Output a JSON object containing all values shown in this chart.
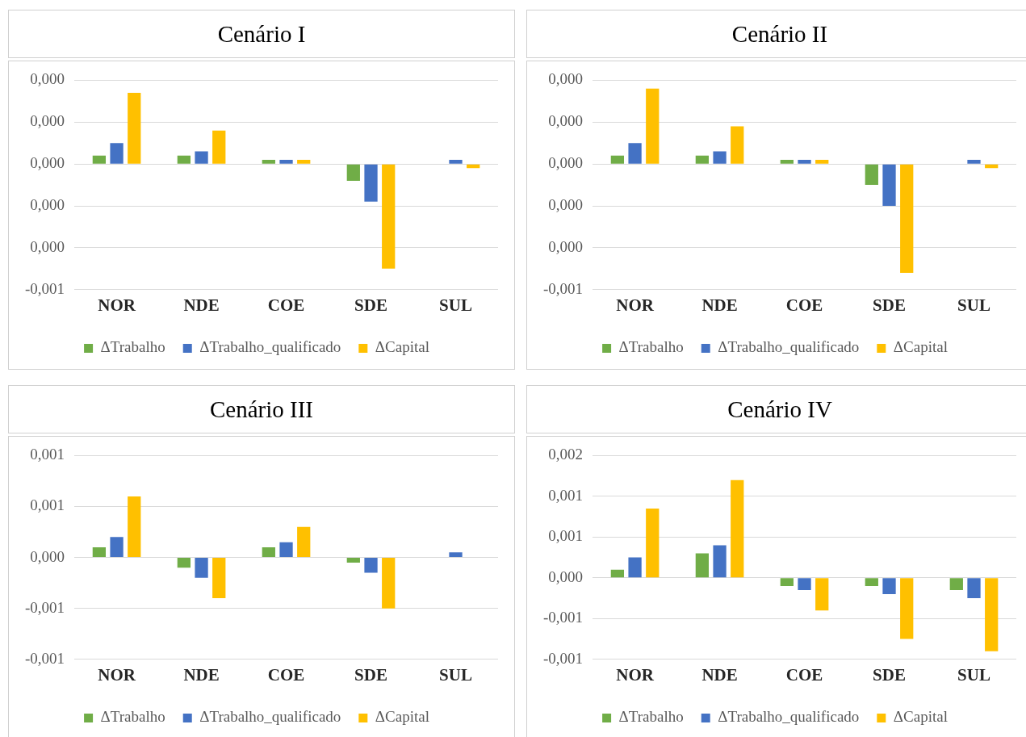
{
  "chart_data": [
    {
      "type": "bar",
      "title": "Cenário I",
      "categories": [
        "NOR",
        "NDE",
        "COE",
        "SDE",
        "SUL"
      ],
      "series": [
        {
          "name": "ΔTrabalho",
          "color": "#70ad47",
          "values": [
            4e-05,
            4e-05,
            2e-05,
            -8e-05,
            0
          ]
        },
        {
          "name": "ΔTrabalho_qualificado",
          "color": "#4472c4",
          "values": [
            0.0001,
            6e-05,
            2e-05,
            -0.00018,
            2e-05
          ]
        },
        {
          "name": "ΔCapital",
          "color": "#ffc000",
          "values": [
            0.00034,
            0.00016,
            2e-05,
            -0.0005,
            -2e-05
          ]
        }
      ],
      "ylim": [
        -0.0006,
        0.0004
      ],
      "yticks": [
        {
          "value": 0.0004,
          "label": "0,000"
        },
        {
          "value": 0.0002,
          "label": "0,000"
        },
        {
          "value": 0,
          "label": "0,000"
        },
        {
          "value": -0.0002,
          "label": "0,000"
        },
        {
          "value": -0.0004,
          "label": "0,000"
        },
        {
          "value": -0.0006,
          "label": "-0,001"
        }
      ],
      "grid": "y",
      "legend": "bottom"
    },
    {
      "type": "bar",
      "title": "Cenário II",
      "categories": [
        "NOR",
        "NDE",
        "COE",
        "SDE",
        "SUL"
      ],
      "series": [
        {
          "name": "ΔTrabalho",
          "color": "#70ad47",
          "values": [
            4e-05,
            4e-05,
            2e-05,
            -0.0001,
            0
          ]
        },
        {
          "name": "ΔTrabalho_qualificado",
          "color": "#4472c4",
          "values": [
            0.0001,
            6e-05,
            2e-05,
            -0.0002,
            2e-05
          ]
        },
        {
          "name": "ΔCapital",
          "color": "#ffc000",
          "values": [
            0.00036,
            0.00018,
            2e-05,
            -0.00052,
            -2e-05
          ]
        }
      ],
      "ylim": [
        -0.0006,
        0.0004
      ],
      "yticks": [
        {
          "value": 0.0004,
          "label": "0,000"
        },
        {
          "value": 0.0002,
          "label": "0,000"
        },
        {
          "value": 0,
          "label": "0,000"
        },
        {
          "value": -0.0002,
          "label": "0,000"
        },
        {
          "value": -0.0004,
          "label": "0,000"
        },
        {
          "value": -0.0006,
          "label": "-0,001"
        }
      ],
      "grid": "y",
      "legend": "bottom"
    },
    {
      "type": "bar",
      "title": "Cenário III",
      "categories": [
        "NOR",
        "NDE",
        "COE",
        "SDE",
        "SUL"
      ],
      "series": [
        {
          "name": "ΔTrabalho",
          "color": "#70ad47",
          "values": [
            0.0001,
            -0.0001,
            0.0001,
            -5e-05,
            0
          ]
        },
        {
          "name": "ΔTrabalho_qualificado",
          "color": "#4472c4",
          "values": [
            0.0002,
            -0.0002,
            0.00015,
            -0.00015,
            5e-05
          ]
        },
        {
          "name": "ΔCapital",
          "color": "#ffc000",
          "values": [
            0.0006,
            -0.0004,
            0.0003,
            -0.0005,
            0
          ]
        }
      ],
      "ylim": [
        -0.001,
        0.001
      ],
      "yticks": [
        {
          "value": 0.001,
          "label": "0,001"
        },
        {
          "value": 0.0005,
          "label": "0,001"
        },
        {
          "value": 0,
          "label": "0,000"
        },
        {
          "value": -0.0005,
          "label": "-0,001"
        },
        {
          "value": -0.001,
          "label": "-0,001"
        }
      ],
      "grid": "y",
      "legend": "bottom"
    },
    {
      "type": "bar",
      "title": "Cenário IV",
      "categories": [
        "NOR",
        "NDE",
        "COE",
        "SDE",
        "SUL"
      ],
      "series": [
        {
          "name": "ΔTrabalho",
          "color": "#70ad47",
          "values": [
            0.0001,
            0.0003,
            -0.0001,
            -0.0001,
            -0.00015
          ]
        },
        {
          "name": "ΔTrabalho_qualificado",
          "color": "#4472c4",
          "values": [
            0.00025,
            0.0004,
            -0.00015,
            -0.0002,
            -0.00025
          ]
        },
        {
          "name": "ΔCapital",
          "color": "#ffc000",
          "values": [
            0.00085,
            0.0012,
            -0.0004,
            -0.00075,
            -0.0009
          ]
        }
      ],
      "ylim": [
        -0.001,
        0.0015
      ],
      "yticks": [
        {
          "value": 0.0015,
          "label": "0,002"
        },
        {
          "value": 0.001,
          "label": "0,001"
        },
        {
          "value": 0.0005,
          "label": "0,001"
        },
        {
          "value": 0,
          "label": "0,000"
        },
        {
          "value": -0.0005,
          "label": "-0,001"
        },
        {
          "value": -0.001,
          "label": "-0,001"
        }
      ],
      "grid": "y",
      "legend": "bottom"
    }
  ]
}
